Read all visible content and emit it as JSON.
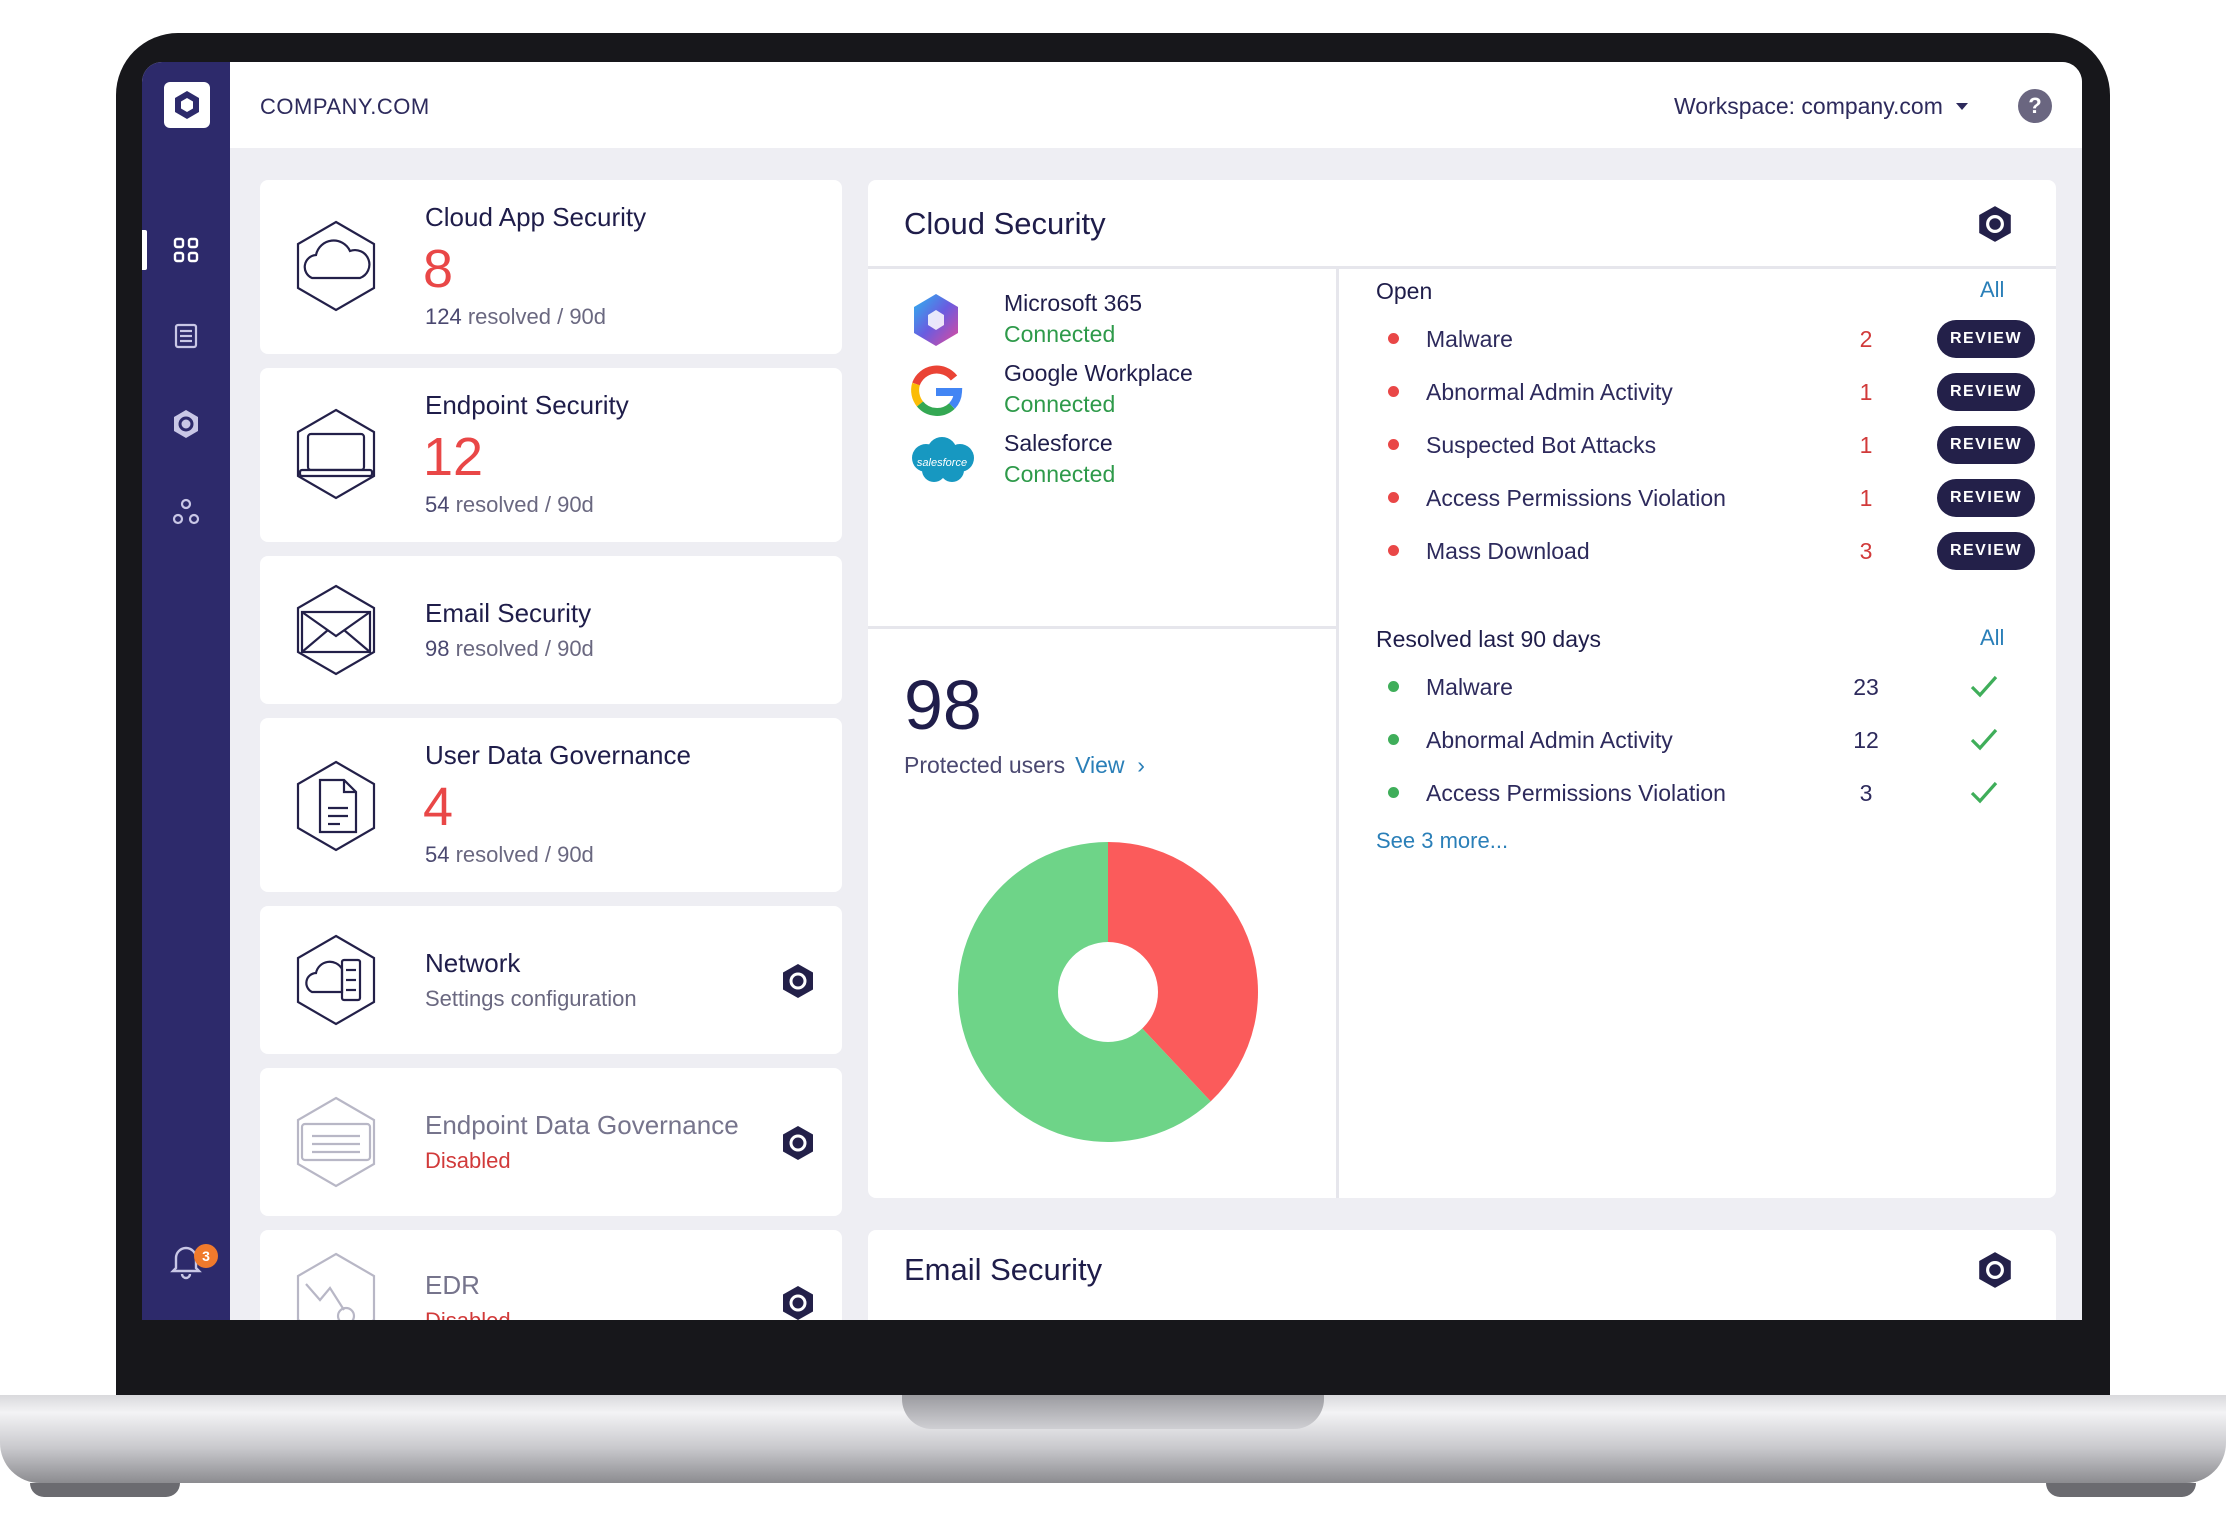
{
  "header": {
    "company": "COMPANY.COM",
    "workspace": "Workspace: company.com",
    "help": "?"
  },
  "sidebar": {
    "notification_count": "3",
    "items": [
      "dashboard-icon",
      "list-icon",
      "hexagon-icon",
      "nodes-icon"
    ]
  },
  "products": [
    {
      "title": "Cloud App Security",
      "count": "8",
      "resolved_num": "124",
      "resolved_rest": " resolved / 90d"
    },
    {
      "title": "Endpoint Security",
      "count": "12",
      "resolved_num": "54",
      "resolved_rest": " resolved / 90d"
    },
    {
      "title": "Email Security",
      "resolved_num": "98",
      "resolved_rest": " resolved / 90d"
    },
    {
      "title": "User Data Governance",
      "count": "4",
      "resolved_num": "54",
      "resolved_rest": " resolved / 90d"
    },
    {
      "title": "Network",
      "subtitle": "Settings configuration"
    },
    {
      "title": "Endpoint Data Governance",
      "status": "Disabled"
    },
    {
      "title": "EDR",
      "status": "Disabled"
    }
  ],
  "cloud_security": {
    "title": "Cloud Security",
    "apps": [
      {
        "name": "Microsoft 365",
        "status": "Connected"
      },
      {
        "name": "Google Workplace",
        "status": "Connected"
      },
      {
        "name": "Salesforce",
        "status": "Connected",
        "logo_text": "salesforce"
      }
    ],
    "protected_count": "98",
    "protected_label": "Protected users",
    "view_label": "View",
    "open_heading": "Open",
    "all_label": "All",
    "review_label": "REVIEW",
    "open_issues": [
      {
        "label": "Malware",
        "count": "2"
      },
      {
        "label": "Abnormal Admin Activity",
        "count": "1"
      },
      {
        "label": "Suspected Bot Attacks",
        "count": "1"
      },
      {
        "label": "Access Permissions Violation",
        "count": "1"
      },
      {
        "label": "Mass Download",
        "count": "3"
      }
    ],
    "resolved_heading": "Resolved last 90 days",
    "resolved_issues": [
      {
        "label": "Malware",
        "count": "23"
      },
      {
        "label": "Abnormal Admin Activity",
        "count": "12"
      },
      {
        "label": "Access Permissions Violation",
        "count": "3"
      }
    ],
    "see_more": "See 3 more...",
    "colors": {
      "open": "#e94747",
      "resolved": "#3fae5a",
      "brand": "#2d2a6b"
    }
  },
  "chart_data": {
    "type": "pie",
    "donut": true,
    "values": [
      38,
      62
    ],
    "colors": [
      "#fb5b5b",
      "#6ed488"
    ]
  },
  "email_security": {
    "title": "Email Security"
  }
}
